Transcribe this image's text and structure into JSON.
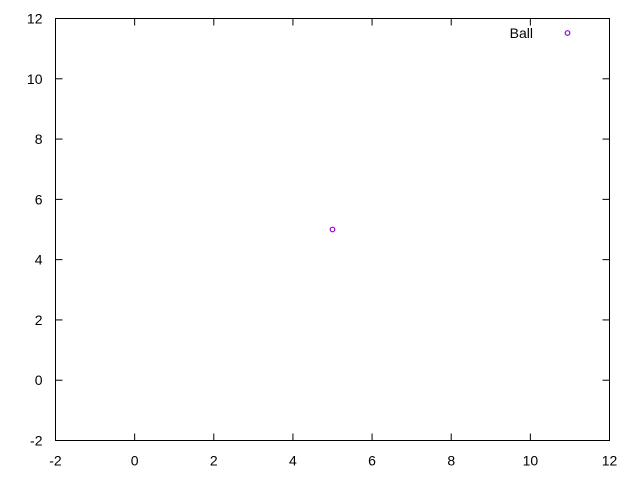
{
  "chart_data": {
    "type": "scatter",
    "title": "",
    "xlabel": "",
    "ylabel": "",
    "xlim": [
      -2,
      12
    ],
    "ylim": [
      -2,
      12
    ],
    "x_ticks": [
      -2,
      0,
      2,
      4,
      6,
      8,
      10,
      12
    ],
    "y_ticks": [
      -2,
      0,
      2,
      4,
      6,
      8,
      10,
      12
    ],
    "grid": false,
    "legend": {
      "placement": "top-right",
      "entries": [
        {
          "label": "Ball",
          "color": "#9400d3",
          "marker": "circle"
        }
      ]
    },
    "series": [
      {
        "name": "Ball",
        "color": "#9400d3",
        "marker": "circle",
        "points": [
          {
            "x": 5,
            "y": 5
          }
        ]
      }
    ]
  }
}
